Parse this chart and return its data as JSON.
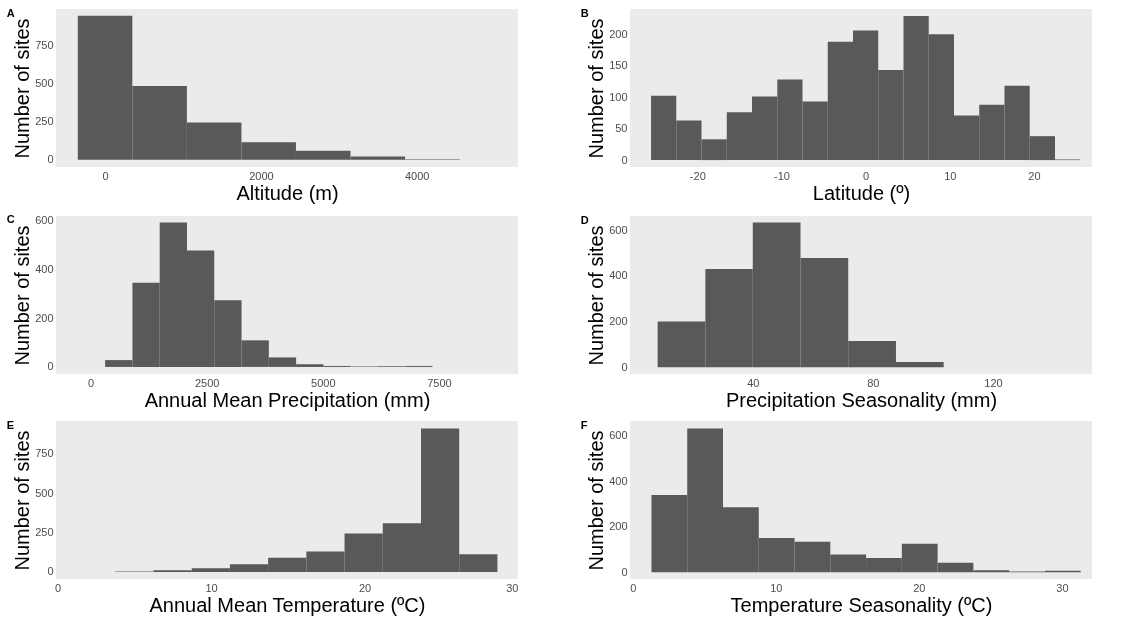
{
  "chart_data": [
    {
      "type": "histogram",
      "title": "A",
      "xlabel": "Altitude (m)",
      "ylabel": "Number of sites",
      "color": "#595959",
      "bins": [
        -350,
        350,
        1050,
        1750,
        2450,
        3150,
        3850,
        4550,
        5250
      ],
      "values": [
        947,
        486,
        246,
        115,
        60,
        22,
        4,
        1
      ],
      "xlim": [
        -630,
        5300
      ],
      "xticks": [
        0,
        2000,
        4000
      ],
      "ylim": [
        -47,
        992
      ],
      "yticks": [
        0,
        250,
        500,
        750
      ]
    },
    {
      "type": "histogram",
      "title": "B",
      "xlabel": "Latitude (º)",
      "ylabel": "Number of sites",
      "color": "#595959",
      "bins": [
        -25.5,
        -22.5,
        -19.5,
        -16.5,
        -13.5,
        -10.5,
        -7.5,
        -4.5,
        -1.5,
        1.5,
        4.5,
        7.5,
        10.5,
        13.5,
        16.5,
        19.5,
        22.5,
        25.5
      ],
      "values": [
        102,
        63,
        33,
        76,
        101,
        128,
        93,
        188,
        206,
        143,
        229,
        200,
        71,
        88,
        118,
        38,
        1
      ],
      "xlim": [
        -28,
        26.9
      ],
      "xticks": [
        -20,
        -10,
        0,
        10,
        20
      ],
      "ylim": [
        -11,
        240
      ],
      "yticks": [
        0,
        50,
        100,
        150,
        200
      ]
    },
    {
      "type": "histogram",
      "title": "C",
      "xlabel": "Annual Mean Precipitation (mm)",
      "ylabel": "Number of sites",
      "color": "#595959",
      "bins": [
        -275,
        312,
        900,
        1487,
        2075,
        2662,
        3250,
        3837,
        4425,
        5012,
        5600,
        6187,
        6775,
        7362,
        7950,
        8537,
        9125
      ],
      "values": [
        null,
        28,
        345,
        592,
        478,
        273,
        109,
        39,
        11,
        4,
        2,
        3,
        4,
        null,
        0,
        0
      ],
      "xlim": [
        -746,
        9203
      ],
      "xticks": [
        0,
        2500,
        5000,
        7500
      ],
      "ylim": [
        -29,
        619
      ],
      "yticks": [
        0,
        200,
        400,
        600
      ]
    },
    {
      "type": "histogram",
      "title": "D",
      "xlabel": "Precipitation Seasonality (mm)",
      "ylabel": "Number of sites",
      "color": "#595959",
      "bins": [
        8.3,
        24.2,
        40.0,
        55.9,
        71.8,
        87.7,
        103.6,
        119.4,
        135.3,
        151.2
      ],
      "values": [
        200,
        431,
        635,
        479,
        115,
        23,
        null,
        0,
        null
      ],
      "xlim": [
        -0.9,
        153
      ],
      "xticks": [
        40,
        80,
        120
      ],
      "ylim": [
        -30,
        663
      ],
      "yticks": [
        0,
        200,
        400,
        600
      ]
    },
    {
      "type": "histogram",
      "title": "E",
      "xlabel": "Annual Mean Temperature (ºC)",
      "ylabel": "Number of sites",
      "color": "#595959",
      "bins": [
        1.27,
        3.76,
        6.25,
        8.74,
        11.23,
        13.72,
        16.21,
        18.7,
        21.19,
        23.68,
        26.17,
        28.66
      ],
      "values": [
        null,
        3,
        11,
        23,
        49,
        90,
        130,
        244,
        310,
        912,
        113
      ],
      "xlim": [
        -0.1,
        30
      ],
      "xticks": [
        0,
        10,
        20,
        30
      ],
      "ylim": [
        -45,
        959
      ],
      "yticks": [
        0,
        250,
        500,
        750
      ]
    },
    {
      "type": "histogram",
      "title": "F",
      "xlabel": "Temperature Seasonality (ºC)",
      "ylabel": "Number of sites",
      "color": "#595959",
      "bins": [
        1.31,
        3.81,
        6.31,
        8.81,
        11.31,
        13.81,
        16.31,
        18.81,
        21.31,
        23.81,
        26.31,
        28.81,
        31.31
      ],
      "values": [
        340,
        632,
        286,
        150,
        134,
        78,
        62,
        125,
        41,
        9,
        3,
        6
      ],
      "xlim": [
        -0.19,
        32.1
      ],
      "xticks": [
        0,
        10,
        20,
        30
      ],
      "ylim": [
        -30,
        665
      ],
      "yticks": [
        0,
        200,
        400,
        600
      ]
    }
  ]
}
